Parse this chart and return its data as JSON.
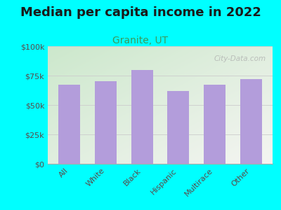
{
  "title": "Median per capita income in 2022",
  "subtitle": "Granite, UT",
  "categories": [
    "All",
    "White",
    "Black",
    "Hispanic",
    "Multirace",
    "Other"
  ],
  "values": [
    67000,
    70000,
    80000,
    62000,
    67000,
    72000
  ],
  "bar_color": "#b39ddb",
  "background_color": "#00FFFF",
  "grad_top_left": "#d6edd6",
  "grad_top_right": "#f0f0ee",
  "grad_bottom": "#d6edd6",
  "title_fontsize": 13,
  "subtitle_fontsize": 10,
  "subtitle_color": "#3a9a5c",
  "tick_color": "#5a4a4a",
  "ylim": [
    0,
    100000
  ],
  "yticks": [
    0,
    25000,
    50000,
    75000,
    100000
  ],
  "ytick_labels": [
    "$0",
    "$25k",
    "$50k",
    "$75k",
    "$100k"
  ],
  "watermark": "City-Data.com"
}
